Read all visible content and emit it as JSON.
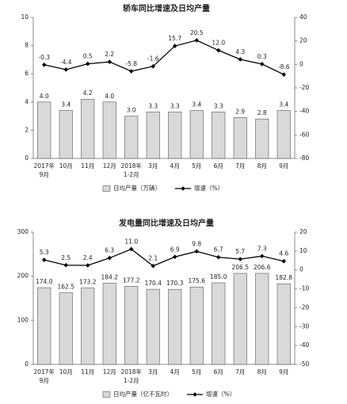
{
  "chart_data": [
    {
      "type": "combo",
      "title": "轿车同比增速及日均产量",
      "categories": [
        "2017年\n9月",
        "10月",
        "11月",
        "12月",
        "2018年\n1-2月",
        "3月",
        "4月",
        "5月",
        "6月",
        "7月",
        "8月",
        "9月"
      ],
      "series": [
        {
          "name": "日均产量（万辆）",
          "type": "bar",
          "color": "#d9d9d9",
          "values": [
            4.0,
            3.4,
            4.2,
            4.0,
            3.0,
            3.3,
            3.3,
            3.4,
            3.3,
            2.9,
            2.8,
            3.4
          ],
          "value_labels": [
            "4.0",
            "3.4",
            "4.2",
            "4.0",
            "3.0",
            "3.3",
            "3.3",
            "3.4",
            "3.3",
            "2.9",
            "2.8",
            "3.4"
          ]
        },
        {
          "name": "增速（%）",
          "type": "line",
          "axis": "y2",
          "color": "#000000",
          "values": [
            -0.3,
            -4.4,
            0.5,
            2.2,
            -5.8,
            -1.6,
            15.7,
            20.5,
            12.0,
            4.3,
            0.3,
            -8.6
          ],
          "value_labels": [
            "-0.3",
            "-4.4",
            "0.5",
            "2.2",
            "-5.8",
            "-1.6",
            "15.7",
            "20.5",
            "12.0",
            "4.3",
            "0.3",
            "-8.6"
          ]
        }
      ],
      "ylim": [
        0,
        10
      ],
      "yticks": [
        0,
        2,
        4,
        6,
        8,
        10
      ],
      "y2lim": [
        -80,
        40
      ],
      "y2ticks": [
        -80,
        -60,
        -40,
        -20,
        0,
        20,
        40
      ]
    },
    {
      "type": "combo",
      "title": "发电量同比增速及日均产量",
      "categories": [
        "2017年\n9月",
        "10月",
        "11月",
        "12月",
        "2018年\n1-2月",
        "3月",
        "4月",
        "5月",
        "6月",
        "7月",
        "8月",
        "9月"
      ],
      "series": [
        {
          "name": "日均产量（亿千瓦时）",
          "type": "bar",
          "color": "#d9d9d9",
          "values": [
            174.0,
            162.5,
            173.2,
            184.2,
            177.2,
            170.4,
            170.3,
            175.6,
            185.0,
            206.5,
            206.6,
            182.8
          ],
          "value_labels": [
            "174.0",
            "162.5",
            "173.2",
            "184.2",
            "177.2",
            "170.4",
            "170.3",
            "175.6",
            "185.0",
            "206.5",
            "206.6",
            "182.8"
          ]
        },
        {
          "name": "增速（%）",
          "type": "line",
          "axis": "y2",
          "color": "#000000",
          "values": [
            5.3,
            2.5,
            2.4,
            6.3,
            11.0,
            2.1,
            6.9,
            9.8,
            6.7,
            5.7,
            7.3,
            4.6
          ],
          "value_labels": [
            "5.3",
            "2.5",
            "2.4",
            "6.3",
            "11.0",
            "2.1",
            "6.9",
            "9.8",
            "6.7",
            "5.7",
            "7.3",
            "4.6"
          ]
        }
      ],
      "ylim": [
        0,
        300
      ],
      "yticks": [
        0,
        100,
        200,
        300
      ],
      "y2lim": [
        -50,
        20
      ],
      "y2ticks": [
        -50,
        -40,
        -30,
        -20,
        -10,
        0,
        10,
        20
      ]
    }
  ]
}
